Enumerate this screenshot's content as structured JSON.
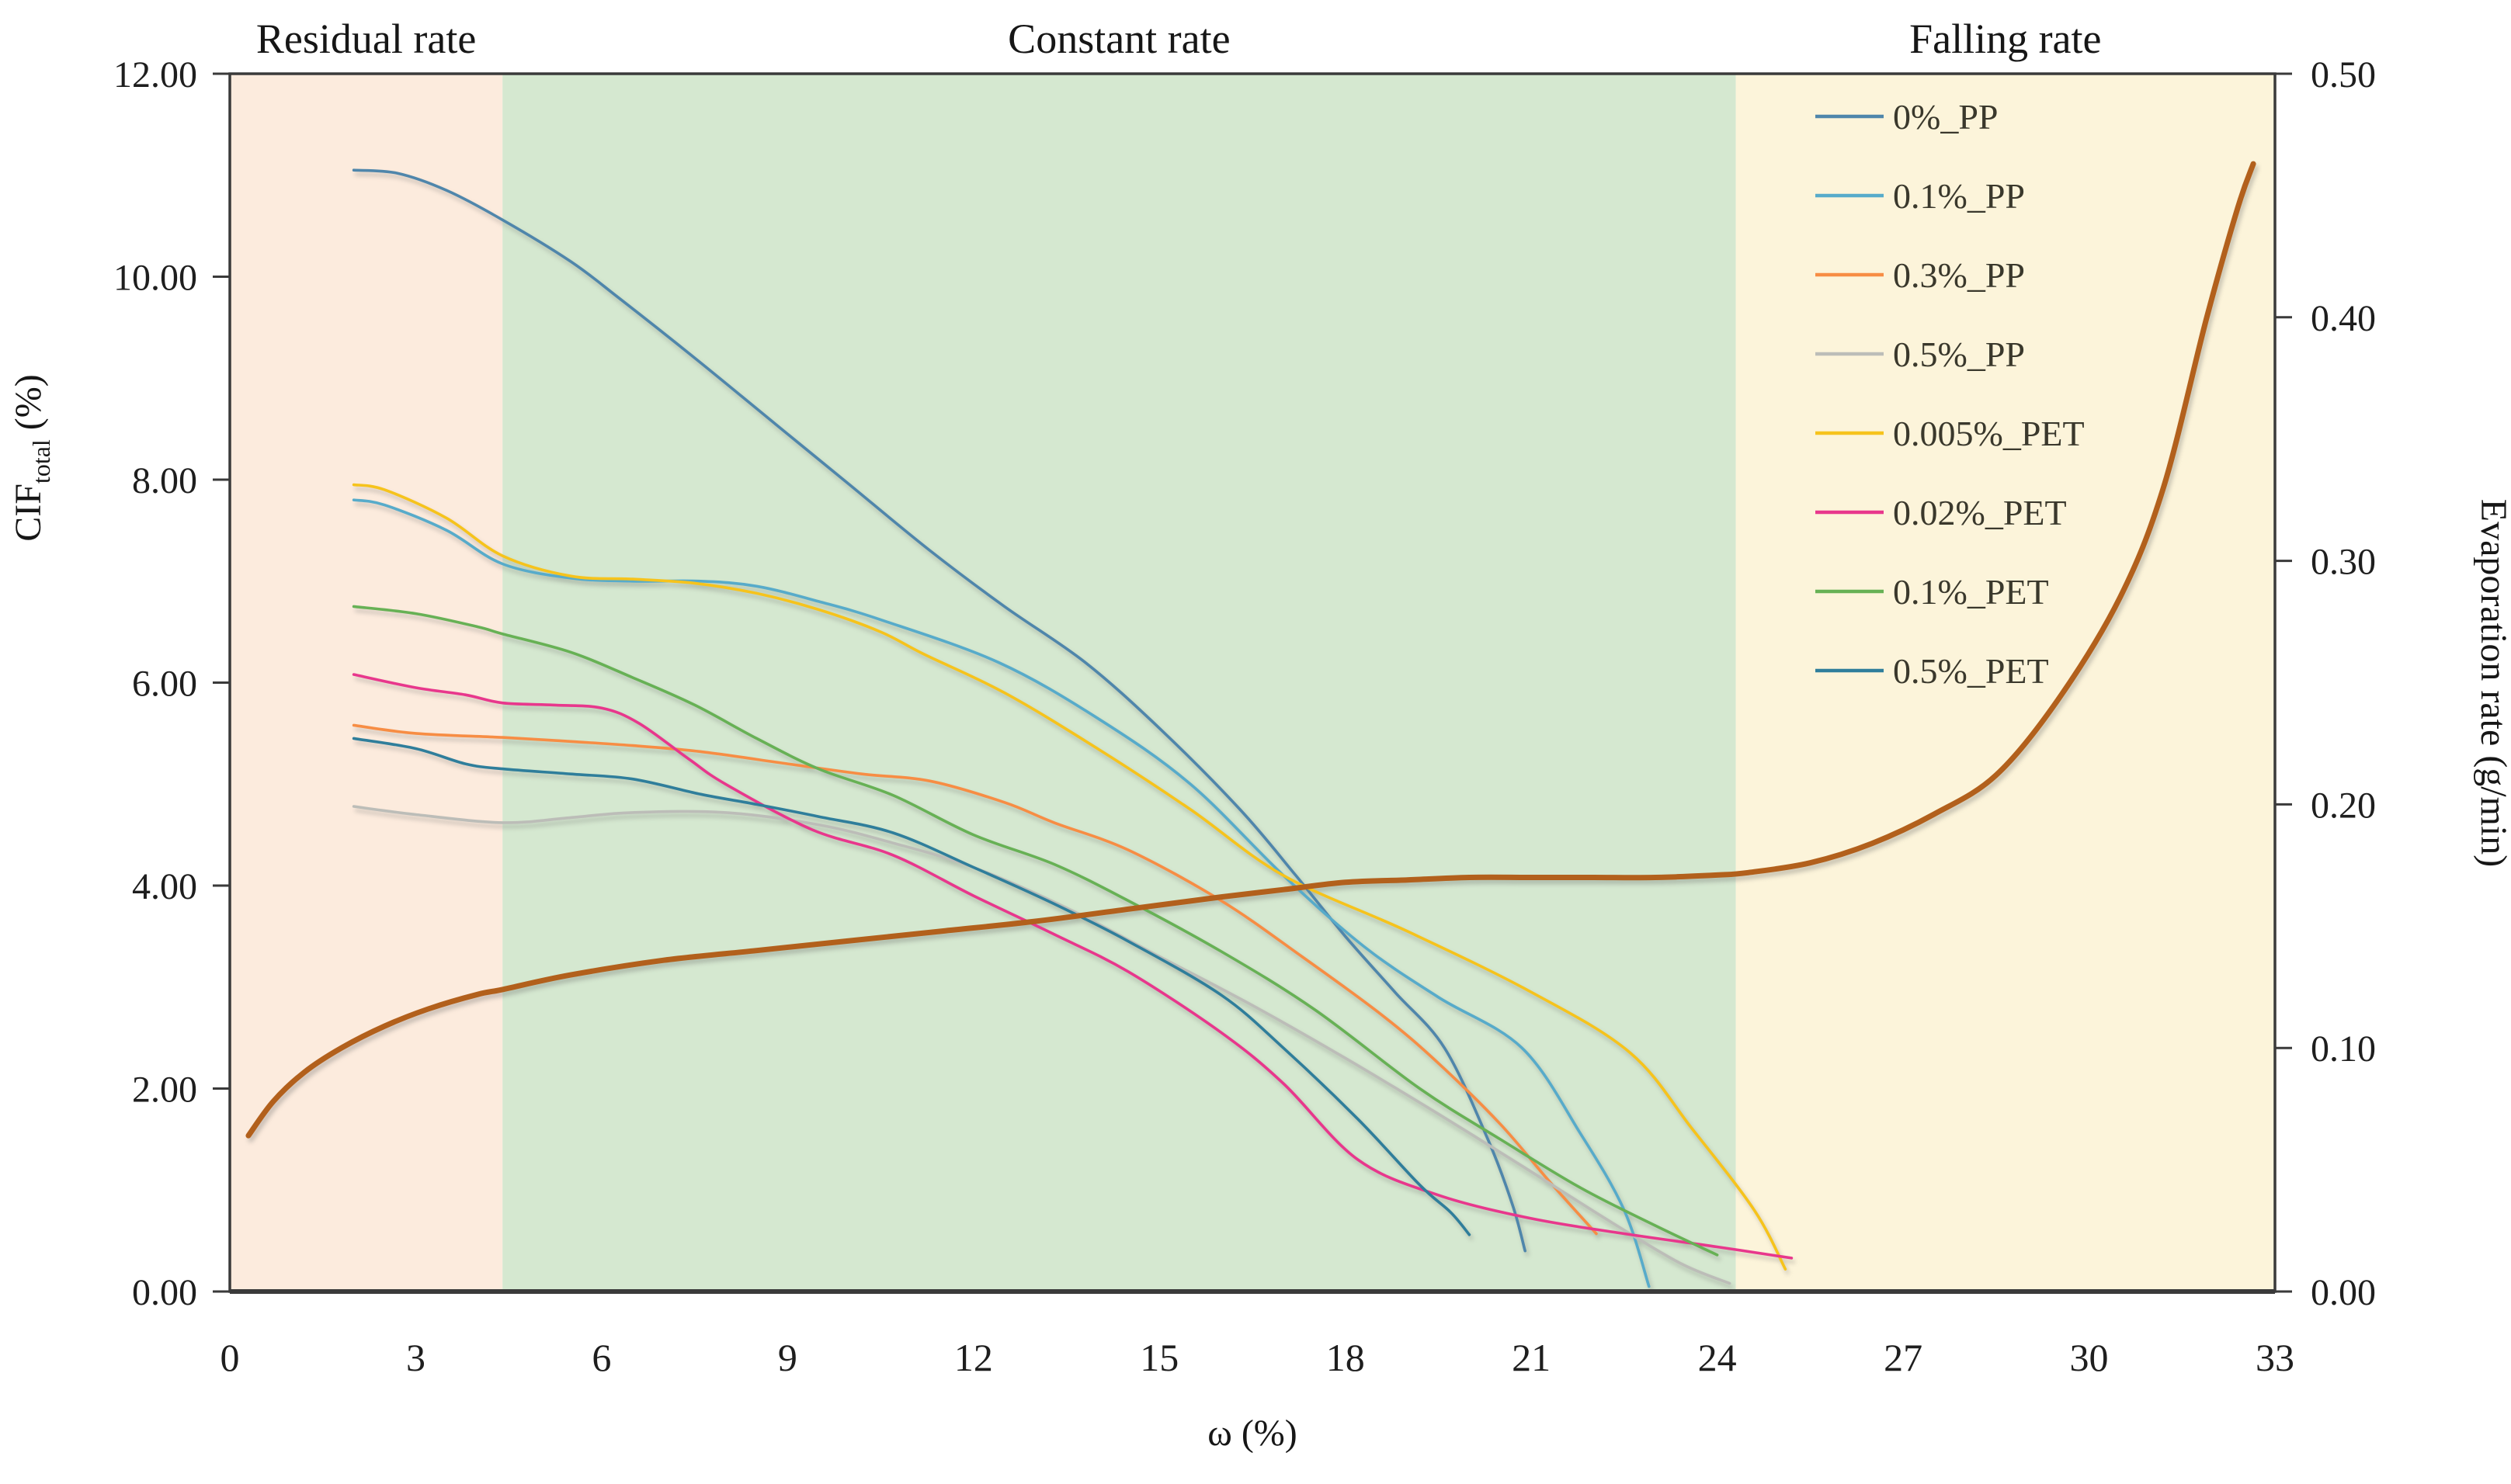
{
  "chart_data": {
    "type": "line",
    "title": "",
    "xlabel": "ω (%)",
    "ylabel_left": {
      "main": "CIF",
      "sub": "total",
      "unit": " (%)"
    },
    "ylabel_right": "Evaporation rate (g/min)",
    "x_axis": {
      "min": 0,
      "max": 33,
      "ticks": [
        {
          "v": 0,
          "label": "0"
        },
        {
          "v": 3,
          "label": "3"
        },
        {
          "v": 6,
          "label": "6"
        },
        {
          "v": 9,
          "label": "9"
        },
        {
          "v": 12,
          "label": "12"
        },
        {
          "v": 15,
          "label": "15"
        },
        {
          "v": 18,
          "label": "18"
        },
        {
          "v": 21,
          "label": "21"
        },
        {
          "v": 24,
          "label": "24"
        },
        {
          "v": 27,
          "label": "27"
        },
        {
          "v": 30,
          "label": "30"
        },
        {
          "v": 33,
          "label": "33"
        }
      ]
    },
    "left_axis": {
      "min": 0,
      "max": 12,
      "ticks": [
        {
          "v": 12,
          "label": "12.00"
        },
        {
          "v": 10,
          "label": "10.00"
        },
        {
          "v": 8,
          "label": "8.00"
        },
        {
          "v": 6,
          "label": "6.00"
        },
        {
          "v": 4,
          "label": "4.00"
        },
        {
          "v": 2,
          "label": "2.00"
        },
        {
          "v": 0,
          "label": "0.00"
        }
      ]
    },
    "right_axis": {
      "min": 0,
      "max": 0.5,
      "ticks": [
        {
          "v": 0.5,
          "label": "0.50"
        },
        {
          "v": 0.4,
          "label": "0.40"
        },
        {
          "v": 0.3,
          "label": "0.30"
        },
        {
          "v": 0.2,
          "label": "0.20"
        },
        {
          "v": 0.1,
          "label": "0.10"
        },
        {
          "v": 0.0,
          "label": "0.00"
        }
      ]
    },
    "regions": [
      {
        "label": "Residual rate",
        "from": 0,
        "to": 4.4,
        "color": "#fcebdd"
      },
      {
        "label": "Constant rate",
        "from": 4.4,
        "to": 24.3,
        "color": "#d5e8d0"
      },
      {
        "label": "Falling rate",
        "from": 24.3,
        "to": 33,
        "color": "#fcf4da"
      }
    ],
    "legend_position": "top-right-inside",
    "grid": false,
    "series": [
      {
        "name": "0%_PP",
        "color": "#4f86ab",
        "axis": "left",
        "width": 3.6,
        "in_legend": true,
        "points": [
          [
            2,
            11.05
          ],
          [
            2.7,
            11.02
          ],
          [
            3.5,
            10.85
          ],
          [
            4.4,
            10.56
          ],
          [
            5.5,
            10.15
          ],
          [
            6.3,
            9.78
          ],
          [
            7.5,
            9.2
          ],
          [
            8.8,
            8.55
          ],
          [
            10,
            7.95
          ],
          [
            11.3,
            7.3
          ],
          [
            12.5,
            6.75
          ],
          [
            13.8,
            6.2
          ],
          [
            15,
            5.55
          ],
          [
            16.3,
            4.75
          ],
          [
            17.2,
            4.1
          ],
          [
            18,
            3.5
          ],
          [
            18.8,
            2.95
          ],
          [
            19.6,
            2.4
          ],
          [
            20.3,
            1.5
          ],
          [
            20.7,
            0.85
          ],
          [
            20.9,
            0.4
          ]
        ]
      },
      {
        "name": "0.1%_PP",
        "color": "#57abca",
        "axis": "left",
        "width": 3.6,
        "in_legend": true,
        "points": [
          [
            2,
            7.8
          ],
          [
            2.5,
            7.75
          ],
          [
            3.5,
            7.5
          ],
          [
            4.4,
            7.17
          ],
          [
            5.5,
            7.03
          ],
          [
            6.5,
            7.0
          ],
          [
            7.6,
            7.0
          ],
          [
            8.5,
            6.95
          ],
          [
            9.5,
            6.8
          ],
          [
            10.5,
            6.62
          ],
          [
            12.4,
            6.2
          ],
          [
            14,
            5.65
          ],
          [
            15.5,
            5.0
          ],
          [
            17,
            4.1
          ],
          [
            18.3,
            3.4
          ],
          [
            19.5,
            2.9
          ],
          [
            20.85,
            2.4
          ],
          [
            21.8,
            1.55
          ],
          [
            22.5,
            0.8
          ],
          [
            22.9,
            0.05
          ]
        ]
      },
      {
        "name": "0.3%_PP",
        "color": "#f78d44",
        "axis": "left",
        "width": 3.6,
        "in_legend": true,
        "points": [
          [
            2,
            5.58
          ],
          [
            3,
            5.5
          ],
          [
            4.4,
            5.46
          ],
          [
            5.5,
            5.42
          ],
          [
            6.5,
            5.38
          ],
          [
            7.6,
            5.32
          ],
          [
            9,
            5.2
          ],
          [
            10.2,
            5.1
          ],
          [
            11.3,
            5.03
          ],
          [
            12.5,
            4.82
          ],
          [
            13.3,
            4.62
          ],
          [
            14.5,
            4.35
          ],
          [
            16,
            3.85
          ],
          [
            17.3,
            3.3
          ],
          [
            18.6,
            2.72
          ],
          [
            19.5,
            2.25
          ],
          [
            20.5,
            1.65
          ],
          [
            21.3,
            1.08
          ],
          [
            22.05,
            0.57
          ]
        ]
      },
      {
        "name": "0.5%_PP",
        "color": "#bcbdb8",
        "axis": "left",
        "width": 3.6,
        "in_legend": true,
        "points": [
          [
            2,
            4.78
          ],
          [
            3,
            4.7
          ],
          [
            4.4,
            4.62
          ],
          [
            5.5,
            4.67
          ],
          [
            6.5,
            4.72
          ],
          [
            8,
            4.72
          ],
          [
            9.5,
            4.6
          ],
          [
            10.7,
            4.42
          ],
          [
            12,
            4.18
          ],
          [
            13.5,
            3.78
          ],
          [
            15,
            3.3
          ],
          [
            16.5,
            2.82
          ],
          [
            18,
            2.3
          ],
          [
            19.5,
            1.75
          ],
          [
            21,
            1.18
          ],
          [
            22.3,
            0.68
          ],
          [
            23.4,
            0.28
          ],
          [
            24.2,
            0.08
          ]
        ]
      },
      {
        "name": "0.005%_PET",
        "color": "#f6c31c",
        "axis": "left",
        "width": 3.6,
        "in_legend": true,
        "points": [
          [
            2,
            7.95
          ],
          [
            2.5,
            7.9
          ],
          [
            3.5,
            7.62
          ],
          [
            4.4,
            7.25
          ],
          [
            5.5,
            7.05
          ],
          [
            6.5,
            7.02
          ],
          [
            7.5,
            6.98
          ],
          [
            8.5,
            6.88
          ],
          [
            9.5,
            6.72
          ],
          [
            10.5,
            6.5
          ],
          [
            11.2,
            6.28
          ],
          [
            12.5,
            5.9
          ],
          [
            14,
            5.35
          ],
          [
            15.5,
            4.75
          ],
          [
            17,
            4.1
          ],
          [
            19,
            3.55
          ],
          [
            21,
            2.95
          ],
          [
            22.6,
            2.35
          ],
          [
            23.6,
            1.6
          ],
          [
            24.6,
            0.8
          ],
          [
            25.1,
            0.22
          ]
        ]
      },
      {
        "name": "0.02%_PET",
        "color": "#e8378c",
        "axis": "left",
        "width": 3.6,
        "in_legend": true,
        "points": [
          [
            2,
            6.08
          ],
          [
            3,
            5.95
          ],
          [
            3.8,
            5.88
          ],
          [
            4.4,
            5.8
          ],
          [
            5.2,
            5.78
          ],
          [
            6,
            5.75
          ],
          [
            6.6,
            5.6
          ],
          [
            7.4,
            5.25
          ],
          [
            8,
            5.0
          ],
          [
            9.4,
            4.55
          ],
          [
            10.7,
            4.3
          ],
          [
            12,
            3.9
          ],
          [
            13.3,
            3.52
          ],
          [
            14.5,
            3.15
          ],
          [
            16,
            2.55
          ],
          [
            17,
            2.05
          ],
          [
            18.2,
            1.3
          ],
          [
            19.5,
            0.95
          ],
          [
            21,
            0.72
          ],
          [
            22.5,
            0.57
          ],
          [
            24,
            0.44
          ],
          [
            25.2,
            0.33
          ]
        ]
      },
      {
        "name": "0.1%_PET",
        "color": "#67b155",
        "axis": "left",
        "width": 3.6,
        "in_legend": true,
        "points": [
          [
            2,
            6.75
          ],
          [
            3,
            6.68
          ],
          [
            4,
            6.55
          ],
          [
            4.4,
            6.48
          ],
          [
            5.5,
            6.3
          ],
          [
            6.5,
            6.05
          ],
          [
            7.5,
            5.78
          ],
          [
            8.5,
            5.45
          ],
          [
            9.5,
            5.15
          ],
          [
            10.7,
            4.89
          ],
          [
            12,
            4.5
          ],
          [
            13.3,
            4.21
          ],
          [
            14.5,
            3.85
          ],
          [
            16,
            3.35
          ],
          [
            17.5,
            2.78
          ],
          [
            19.2,
            2.0
          ],
          [
            20.5,
            1.5
          ],
          [
            21.8,
            1.02
          ],
          [
            23,
            0.65
          ],
          [
            24,
            0.36
          ]
        ]
      },
      {
        "name": "0.5%_PET",
        "color": "#2f7e9b",
        "axis": "left",
        "width": 3.6,
        "in_legend": true,
        "points": [
          [
            2,
            5.45
          ],
          [
            3,
            5.35
          ],
          [
            3.8,
            5.2
          ],
          [
            4.4,
            5.15
          ],
          [
            5.5,
            5.1
          ],
          [
            6.5,
            5.05
          ],
          [
            7.6,
            4.9
          ],
          [
            8.5,
            4.8
          ],
          [
            9.5,
            4.68
          ],
          [
            10.7,
            4.52
          ],
          [
            12,
            4.18
          ],
          [
            13.3,
            3.82
          ],
          [
            14.5,
            3.45
          ],
          [
            16,
            2.92
          ],
          [
            17,
            2.4
          ],
          [
            18.2,
            1.7
          ],
          [
            19.2,
            1.05
          ],
          [
            19.7,
            0.78
          ],
          [
            20,
            0.56
          ]
        ]
      },
      {
        "name": "Evaporation rate",
        "color": "#b2601c",
        "axis": "right",
        "width": 7,
        "in_legend": false,
        "points": [
          [
            0.3,
            0.064
          ],
          [
            0.7,
            0.078
          ],
          [
            1.2,
            0.09
          ],
          [
            1.8,
            0.1
          ],
          [
            2.5,
            0.109
          ],
          [
            3.2,
            0.116
          ],
          [
            4,
            0.122
          ],
          [
            4.4,
            0.124
          ],
          [
            5.5,
            0.13
          ],
          [
            7,
            0.136
          ],
          [
            8.5,
            0.14
          ],
          [
            10,
            0.144
          ],
          [
            11.5,
            0.148
          ],
          [
            13,
            0.152
          ],
          [
            14.5,
            0.157
          ],
          [
            16,
            0.162
          ],
          [
            17,
            0.165
          ],
          [
            18,
            0.168
          ],
          [
            19,
            0.169
          ],
          [
            20,
            0.17
          ],
          [
            21,
            0.17
          ],
          [
            22,
            0.17
          ],
          [
            23,
            0.17
          ],
          [
            24,
            0.171
          ],
          [
            24.5,
            0.172
          ],
          [
            25.5,
            0.176
          ],
          [
            26.5,
            0.184
          ],
          [
            27.5,
            0.196
          ],
          [
            28.5,
            0.212
          ],
          [
            29.5,
            0.243
          ],
          [
            30.5,
            0.285
          ],
          [
            31.2,
            0.33
          ],
          [
            31.9,
            0.4
          ],
          [
            32.4,
            0.445
          ],
          [
            32.65,
            0.463
          ]
        ]
      }
    ]
  }
}
